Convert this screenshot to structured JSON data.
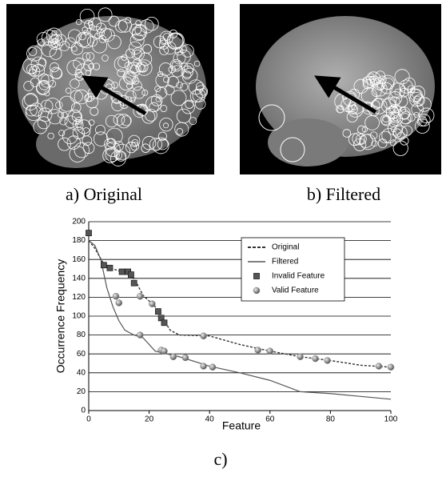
{
  "figure": {
    "captions": [
      "a) Original",
      "b) Filtered",
      "c)"
    ]
  },
  "chart_data": {
    "type": "line",
    "xlabel": "Feature",
    "ylabel": "Occurrence Frequency",
    "xlim": [
      0,
      100
    ],
    "xticks": [
      0,
      20,
      40,
      60,
      80,
      100
    ],
    "ylim": [
      0,
      200
    ],
    "yticks": [
      0,
      20,
      40,
      60,
      80,
      100,
      120,
      140,
      160,
      180,
      200
    ],
    "grid": true,
    "legend": "upper right",
    "series": [
      {
        "name": "Original",
        "kind": "line",
        "dash": true,
        "color": "#333333",
        "x": [
          0,
          2,
          5,
          8,
          12,
          15,
          18,
          22,
          25,
          27,
          30,
          40,
          50,
          60,
          70,
          80,
          90,
          100
        ],
        "values": [
          180,
          172,
          155,
          150,
          146,
          140,
          122,
          110,
          95,
          85,
          80,
          79,
          70,
          63,
          57,
          53,
          48,
          46
        ]
      },
      {
        "name": "Filtered",
        "kind": "line",
        "dash": false,
        "color": "#555555",
        "x": [
          0,
          2,
          4,
          6,
          8,
          10,
          12,
          15,
          18,
          22,
          30,
          40,
          50,
          60,
          70,
          80,
          90,
          100
        ],
        "values": [
          180,
          175,
          160,
          130,
          110,
          95,
          85,
          80,
          77,
          63,
          57,
          47,
          40,
          32,
          20,
          18,
          15,
          12
        ]
      },
      {
        "name": "Invalid Feature",
        "kind": "square",
        "color": "#555555",
        "x": [
          0,
          5,
          7,
          11,
          13,
          14,
          15,
          23,
          24,
          25
        ],
        "values": [
          188,
          154,
          151,
          147,
          147,
          144,
          135,
          105,
          98,
          93
        ]
      },
      {
        "name": "Valid Feature",
        "kind": "sphere",
        "color": "#888888",
        "x": [
          9,
          10,
          17,
          21,
          17,
          24,
          25,
          28,
          32,
          38,
          38,
          41,
          56,
          60,
          70,
          75,
          79,
          96,
          100
        ],
        "values": [
          121,
          114,
          121,
          113,
          80,
          64,
          63,
          57,
          56,
          79,
          47,
          46,
          64,
          63,
          57,
          55,
          53,
          47,
          46
        ]
      }
    ]
  }
}
